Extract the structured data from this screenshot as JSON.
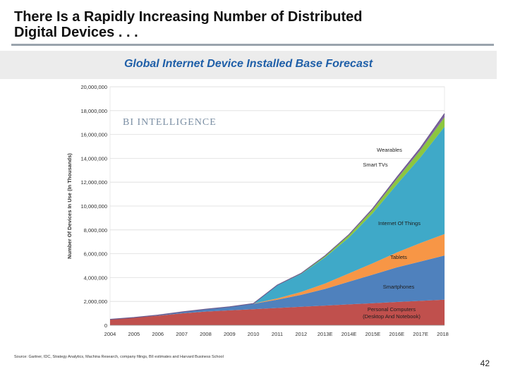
{
  "slide": {
    "title_lines": [
      "There Is a Rapidly Increasing Number of Distributed",
      "Digital Devices . . ."
    ],
    "source": "Source: Gartner, IDC, Strategy Analytics, Machina Research, company filings, BII estimates and Harvard Business School",
    "page_number": "42"
  },
  "chart_data": {
    "type": "area",
    "title": "Global Internet Device Installed Base Forecast",
    "watermark": "BI INTELLIGENCE",
    "ylabel": "Number Of Devices In Use (In Thousands)",
    "xlabel": "",
    "ylim": [
      0,
      20000000
    ],
    "yticks": [
      0,
      2000000,
      4000000,
      6000000,
      8000000,
      10000000,
      12000000,
      14000000,
      16000000,
      18000000,
      20000000
    ],
    "ytick_labels": [
      "0",
      "2,000,000",
      "4,000,000",
      "6,000,000",
      "8,000,000",
      "10,000,000",
      "12,000,000",
      "14,000,000",
      "16,000,000",
      "18,000,000",
      "20,000,000"
    ],
    "categories": [
      "2004",
      "2005",
      "2006",
      "2007",
      "2008",
      "2009",
      "2010",
      "2011",
      "2012",
      "2013E",
      "2014E",
      "2015E",
      "2016E",
      "2017E",
      "2018E"
    ],
    "stacked": true,
    "grid": true,
    "legend": "inline-labels-right",
    "series": [
      {
        "name": "Personal Computers (Desktop And Notebook)",
        "label_lines": [
          "Personal Computers",
          "(Desktop And Notebook)"
        ],
        "color": "#c0504d",
        "values": [
          500000,
          650000,
          800000,
          1000000,
          1150000,
          1250000,
          1350000,
          1450000,
          1550000,
          1650000,
          1750000,
          1850000,
          1950000,
          2050000,
          2150000
        ]
      },
      {
        "name": "Smartphones",
        "label_lines": [
          "Smartphones"
        ],
        "color": "#4f81bd",
        "values": [
          0,
          0,
          50000,
          120000,
          200000,
          300000,
          450000,
          700000,
          1000000,
          1400000,
          1900000,
          2400000,
          2900000,
          3300000,
          3700000
        ]
      },
      {
        "name": "Tablets",
        "label_lines": [
          "Tablets"
        ],
        "color": "#f79646",
        "values": [
          0,
          0,
          0,
          0,
          0,
          0,
          20000,
          100000,
          250000,
          450000,
          700000,
          950000,
          1250000,
          1550000,
          1800000
        ]
      },
      {
        "name": "Internet Of Things",
        "label_lines": [
          "Internet Of Things"
        ],
        "color": "#3fa9c8",
        "values": [
          0,
          0,
          0,
          0,
          0,
          0,
          0,
          1100000,
          1500000,
          2200000,
          3000000,
          4200000,
          5700000,
          7200000,
          9000000
        ]
      },
      {
        "name": "Smart TVs",
        "label_lines": [
          "Smart TVs"
        ],
        "color": "#8cc63f",
        "values": [
          0,
          0,
          0,
          0,
          0,
          0,
          0,
          20000,
          50000,
          100000,
          200000,
          300000,
          450000,
          600000,
          800000
        ]
      },
      {
        "name": "Wearables",
        "label_lines": [
          "Wearables"
        ],
        "color": "#8064a2",
        "values": [
          0,
          0,
          0,
          0,
          0,
          0,
          0,
          0,
          10000,
          30000,
          60000,
          100000,
          150000,
          200000,
          300000
        ]
      }
    ]
  }
}
